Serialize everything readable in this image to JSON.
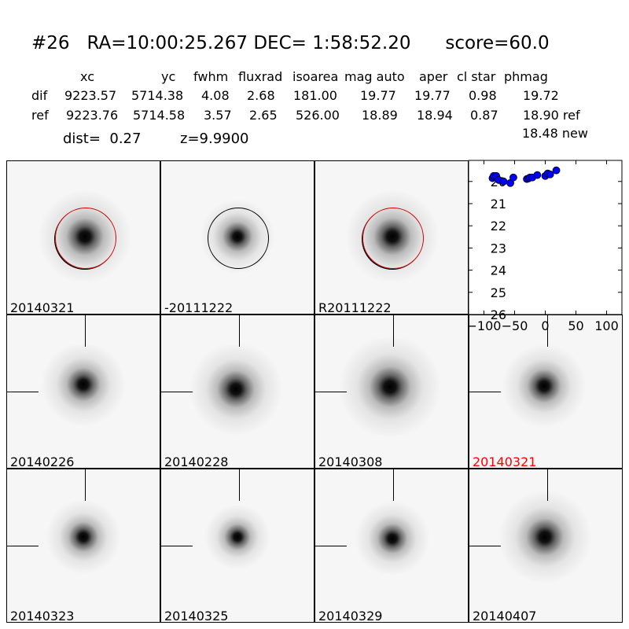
{
  "header": {
    "title": "#26   RA=10:00:25.267 DEC= 1:58:52.20      score=60.0"
  },
  "table": {
    "columns": [
      "xc",
      "yc",
      "fwhm",
      "fluxrad",
      "isoarea",
      "mag auto",
      "aper",
      "cl star",
      "phmag"
    ],
    "rows": [
      {
        "label": "dif",
        "values": [
          "9223.57",
          "5714.38",
          "4.08",
          "2.68",
          "181.00",
          "19.77",
          "19.77",
          "0.98",
          "19.72"
        ]
      },
      {
        "label": "ref",
        "values": [
          "9223.76",
          "5714.58",
          "3.57",
          "2.65",
          "526.00",
          "18.89",
          "18.94",
          "0.87",
          "18.90 ref"
        ]
      }
    ],
    "extra_phmag": "18.48 new",
    "dist": "dist=  0.27",
    "z": "z=9.9900"
  },
  "panels": [
    {
      "label": "20140321",
      "circle": "#d00000"
    },
    {
      "label": "-20111222",
      "circle": "#000000"
    },
    {
      "label": "R20111222",
      "circle": "#d00000"
    },
    {
      "label": "20140226"
    },
    {
      "label": "20140228"
    },
    {
      "label": "20140308"
    },
    {
      "label": "20140321",
      "label_color": "#ff0000"
    },
    {
      "label": "20140323"
    },
    {
      "label": "20140325"
    },
    {
      "label": "20140329"
    },
    {
      "label": "20140407"
    }
  ],
  "chart_data": {
    "type": "scatter",
    "x": [
      -86,
      -84,
      -80,
      -76,
      -68,
      -57,
      -52,
      -30,
      -27,
      -25,
      -21,
      -13,
      0,
      4,
      8,
      18
    ],
    "y": [
      19.85,
      19.75,
      19.75,
      19.93,
      20.0,
      20.07,
      19.82,
      19.89,
      19.86,
      19.82,
      19.82,
      19.71,
      19.75,
      19.64,
      19.68,
      19.5
    ],
    "xlim": [
      -125,
      125
    ],
    "ylim": [
      26,
      19.05
    ],
    "y_inverted": true,
    "xticks": [
      -100,
      -50,
      0,
      50,
      100
    ],
    "yticks": [
      20,
      21,
      22,
      23,
      24,
      25,
      26
    ],
    "marker_color": "#0000ff",
    "grid": false
  }
}
